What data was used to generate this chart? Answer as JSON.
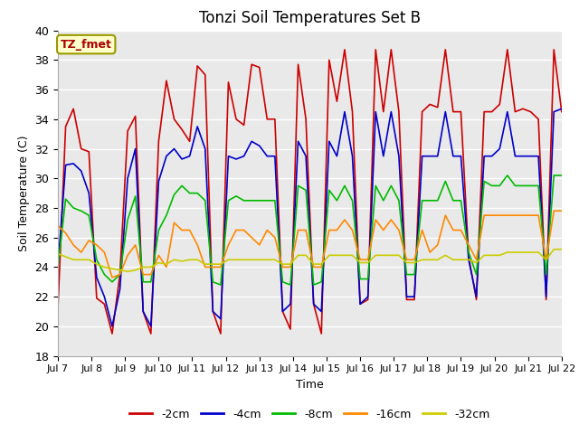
{
  "title": "Tonzi Soil Temperatures Set B",
  "xlabel": "Time",
  "ylabel": "Soil Temperature (C)",
  "ylim": [
    18,
    40
  ],
  "annotation": "TZ_fmet",
  "background_color": "#ffffff",
  "plot_bg_color": "#e9e9e9",
  "grid_color": "#ffffff",
  "series_colors": {
    "-2cm": "#cc0000",
    "-4cm": "#0000cc",
    "-8cm": "#00bb00",
    "-16cm": "#ff8800",
    "-32cm": "#cccc00"
  },
  "tick_labels": [
    "Jul 7",
    "Jul 8",
    "Jul 9",
    "Jul 10",
    "Jul 11",
    "Jul 12",
    "Jul 13",
    "Jul 14",
    "Jul 15",
    "Jul 16",
    "Jul 17",
    "Jul 18",
    "Jul 19",
    "Jul 20",
    "Jul 21",
    "Jul 22"
  ],
  "series_order": [
    "-2cm",
    "-4cm",
    "-8cm",
    "-16cm",
    "-32cm"
  ],
  "data": {
    "-2cm": [
      21.2,
      33.5,
      34.7,
      32.0,
      31.8,
      21.9,
      21.5,
      19.5,
      23.5,
      33.2,
      34.2,
      21.0,
      19.5,
      32.5,
      36.6,
      34.0,
      33.3,
      32.5,
      37.6,
      37.0,
      21.0,
      19.5,
      36.5,
      34.0,
      33.6,
      37.7,
      37.5,
      34.0,
      34.0,
      21.0,
      19.8,
      37.7,
      34.0,
      21.5,
      19.5,
      38.0,
      35.2,
      38.7,
      34.5,
      21.5,
      21.8,
      38.7,
      34.5,
      38.7,
      34.5,
      21.8,
      21.8,
      34.5,
      35.0,
      34.8,
      38.7,
      34.5,
      34.5,
      24.7,
      21.8,
      34.5,
      34.5,
      35.0,
      38.7,
      34.5,
      34.7,
      34.5,
      34.0,
      21.8,
      38.7,
      34.5
    ],
    "-4cm": [
      24.0,
      30.9,
      31.0,
      30.5,
      29.0,
      23.3,
      22.0,
      20.0,
      22.5,
      30.0,
      32.0,
      21.0,
      20.0,
      29.8,
      31.5,
      32.0,
      31.3,
      31.5,
      33.5,
      32.0,
      21.0,
      20.5,
      31.5,
      31.3,
      31.5,
      32.5,
      32.2,
      31.5,
      31.5,
      21.0,
      21.5,
      32.5,
      31.5,
      21.5,
      21.0,
      32.5,
      31.5,
      34.5,
      31.5,
      21.5,
      22.0,
      34.5,
      31.5,
      34.5,
      31.5,
      22.0,
      22.0,
      31.5,
      31.5,
      31.5,
      34.5,
      31.5,
      31.5,
      24.5,
      22.0,
      31.5,
      31.5,
      32.0,
      34.5,
      31.5,
      31.5,
      31.5,
      31.5,
      22.0,
      34.5,
      34.7
    ],
    "-8cm": [
      24.0,
      28.6,
      28.0,
      27.8,
      27.5,
      24.5,
      23.5,
      23.0,
      23.5,
      27.2,
      28.8,
      23.0,
      23.0,
      26.5,
      27.5,
      28.9,
      29.5,
      29.0,
      29.0,
      28.5,
      23.0,
      22.8,
      28.5,
      28.8,
      28.5,
      28.5,
      28.5,
      28.5,
      28.5,
      23.0,
      22.8,
      29.5,
      29.2,
      22.8,
      23.0,
      29.2,
      28.5,
      29.5,
      28.5,
      23.2,
      23.2,
      29.5,
      28.5,
      29.5,
      28.5,
      23.5,
      23.5,
      28.5,
      28.5,
      28.5,
      29.8,
      28.5,
      28.5,
      25.0,
      23.5,
      29.8,
      29.5,
      29.5,
      30.2,
      29.5,
      29.5,
      29.5,
      29.5,
      23.5,
      30.2,
      30.2
    ],
    "-16cm": [
      26.8,
      26.3,
      25.5,
      25.0,
      25.8,
      25.5,
      25.0,
      23.3,
      23.5,
      24.8,
      25.5,
      23.5,
      23.5,
      24.8,
      24.0,
      27.0,
      26.5,
      26.5,
      25.5,
      24.0,
      24.0,
      24.0,
      25.5,
      26.5,
      26.5,
      26.0,
      25.5,
      26.5,
      26.0,
      24.0,
      24.0,
      26.5,
      26.5,
      24.0,
      24.0,
      26.5,
      26.5,
      27.2,
      26.5,
      24.5,
      24.5,
      27.2,
      26.5,
      27.2,
      26.5,
      24.5,
      24.5,
      26.5,
      25.0,
      25.5,
      27.5,
      26.5,
      26.5,
      25.5,
      24.5,
      27.5,
      27.5,
      27.5,
      27.5,
      27.5,
      27.5,
      27.5,
      27.5,
      24.5,
      27.8,
      27.8
    ],
    "-32cm": [
      24.9,
      24.7,
      24.5,
      24.5,
      24.5,
      24.2,
      24.0,
      23.9,
      23.8,
      23.7,
      23.8,
      24.0,
      24.0,
      24.3,
      24.2,
      24.5,
      24.4,
      24.5,
      24.5,
      24.2,
      24.2,
      24.2,
      24.5,
      24.5,
      24.5,
      24.5,
      24.5,
      24.5,
      24.5,
      24.2,
      24.2,
      24.8,
      24.8,
      24.2,
      24.2,
      24.8,
      24.8,
      24.8,
      24.8,
      24.3,
      24.3,
      24.8,
      24.8,
      24.8,
      24.8,
      24.3,
      24.3,
      24.5,
      24.5,
      24.5,
      24.8,
      24.5,
      24.5,
      24.5,
      24.3,
      24.8,
      24.8,
      24.8,
      25.0,
      25.0,
      25.0,
      25.0,
      25.0,
      24.5,
      25.2,
      25.2
    ]
  }
}
